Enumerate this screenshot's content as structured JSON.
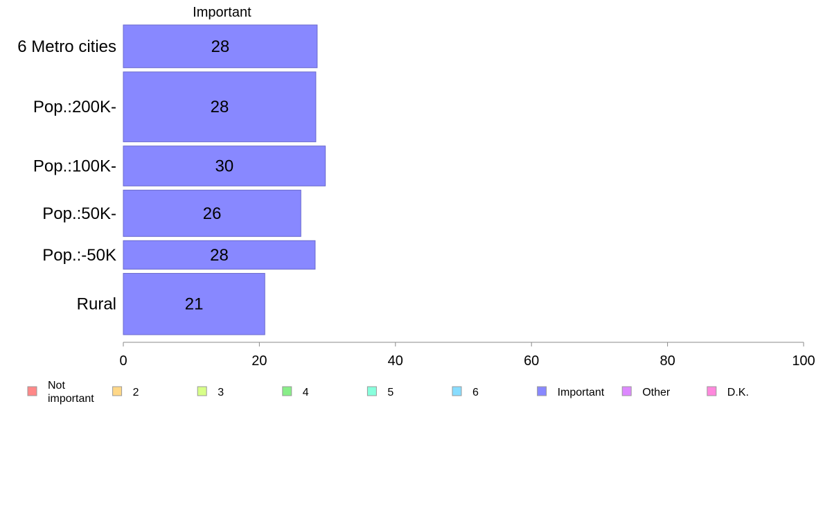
{
  "chart_data": {
    "type": "bar",
    "orientation": "horizontal",
    "title": "",
    "series_title": "Important",
    "categories": [
      "6 Metro cities",
      "Pop.:200K-",
      "Pop.:100K-",
      "Pop.:50K-",
      "Pop.:-50K",
      "Rural"
    ],
    "band_weights": [
      60,
      98,
      56,
      65,
      40,
      86
    ],
    "series": [
      {
        "name": "Important",
        "values": [
          28.5,
          28.3,
          29.7,
          26.1,
          28.2,
          20.8
        ],
        "labels": [
          "28",
          "28",
          "30",
          "26",
          "28",
          "21"
        ],
        "color": "#8888ff"
      }
    ],
    "xlim": [
      0,
      100
    ],
    "xticks": [
      "0",
      "20",
      "40",
      "60",
      "80",
      "100"
    ],
    "xlabel": "",
    "ylabel": "",
    "grid": false,
    "legend": {
      "placement": "bottom",
      "entries": [
        {
          "label": "Not\nimportant",
          "color": "#ff8888"
        },
        {
          "label": "2",
          "color": "#ffd888"
        },
        {
          "label": "3",
          "color": "#d8ff88"
        },
        {
          "label": "4",
          "color": "#88ee88"
        },
        {
          "label": "5",
          "color": "#88ffdd"
        },
        {
          "label": "6",
          "color": "#88ddff"
        },
        {
          "label": "Important",
          "color": "#8888ff"
        },
        {
          "label": "Other",
          "color": "#dd88ff"
        },
        {
          "label": "D.K.",
          "color": "#ff88dd"
        }
      ]
    }
  }
}
